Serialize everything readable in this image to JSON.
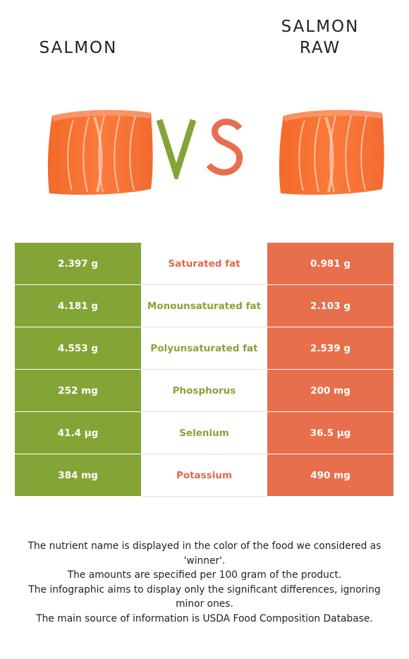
{
  "left_food": {
    "name": "SALMON"
  },
  "right_food": {
    "name_line1": "SALMON",
    "name_line2": "RAW"
  },
  "vs": {
    "v": "V",
    "s": "S"
  },
  "colors": {
    "left": "#84a536",
    "right": "#e86f4c"
  },
  "rows": [
    {
      "left": "2.397 g",
      "nutrient": "Saturated fat",
      "right": "0.981 g",
      "winner": "right"
    },
    {
      "left": "4.181 g",
      "nutrient": "Monounsaturated fat",
      "right": "2.103 g",
      "winner": "left"
    },
    {
      "left": "4.553 g",
      "nutrient": "Polyunsaturated fat",
      "right": "2.539 g",
      "winner": "left"
    },
    {
      "left": "252 mg",
      "nutrient": "Phosphorus",
      "right": "200 mg",
      "winner": "left"
    },
    {
      "left": "41.4 µg",
      "nutrient": "Selenium",
      "right": "36.5 µg",
      "winner": "left"
    },
    {
      "left": "384 mg",
      "nutrient": "Potassium",
      "right": "490 mg",
      "winner": "right"
    }
  ],
  "footer": {
    "line1": "The nutrient name is displayed in the color of the food we considered as 'winner'.",
    "line2": "The amounts are specified per 100 gram of the product.",
    "line3": "The infographic aims to display only the significant differences, ignoring minor ones.",
    "line4": "The main source of information is USDA Food Composition Database."
  }
}
